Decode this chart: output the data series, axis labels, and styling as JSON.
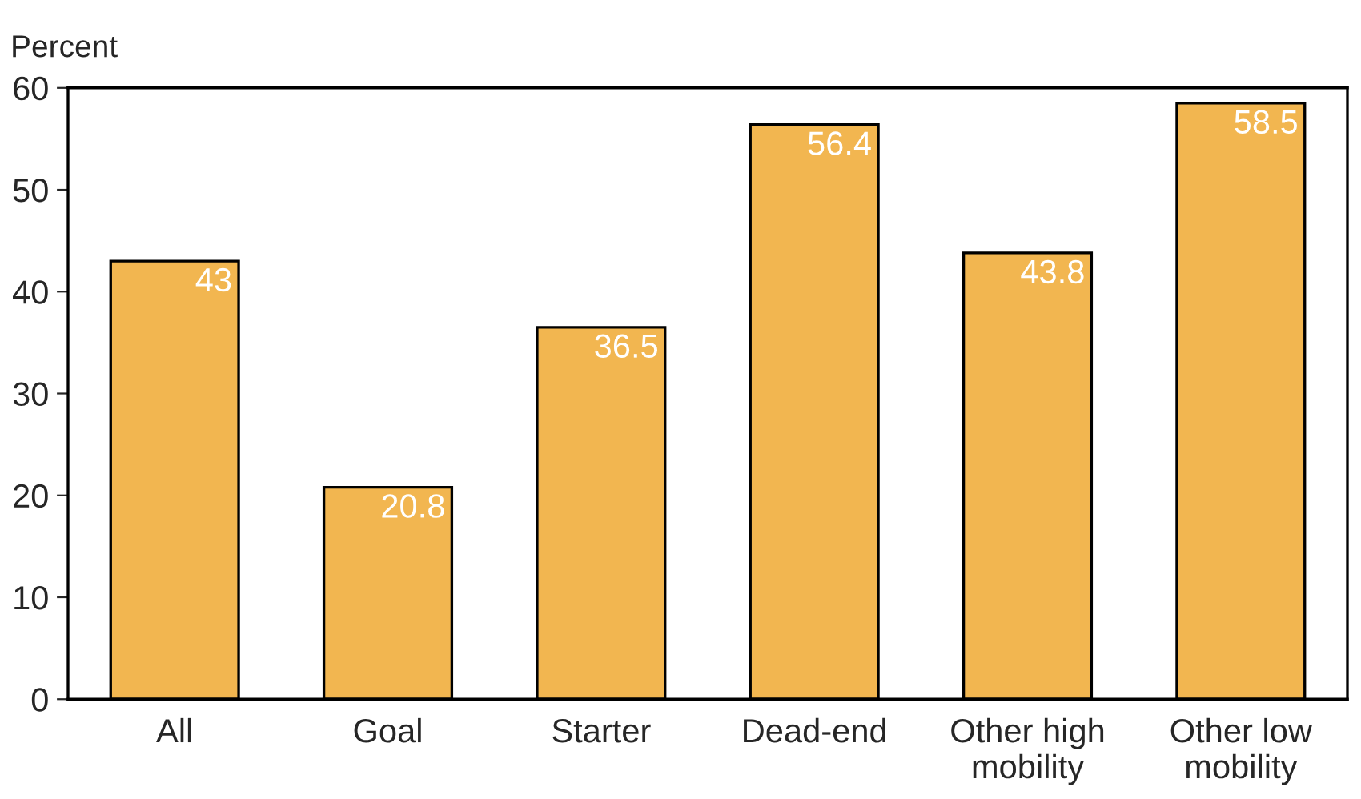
{
  "chart_data": {
    "type": "bar",
    "ylabel": "Percent",
    "categories": [
      "All",
      "Goal",
      "Starter",
      "Dead-end",
      "Other high\nmobility",
      "Other low\nmobility"
    ],
    "values": [
      43,
      20.8,
      36.5,
      56.4,
      43.8,
      58.5
    ],
    "color": "#f2b650",
    "ylim": [
      0,
      60
    ],
    "yticks": [
      0,
      10,
      20,
      30,
      40,
      50,
      60
    ],
    "data_labels": true,
    "grid": false,
    "legend": false
  }
}
